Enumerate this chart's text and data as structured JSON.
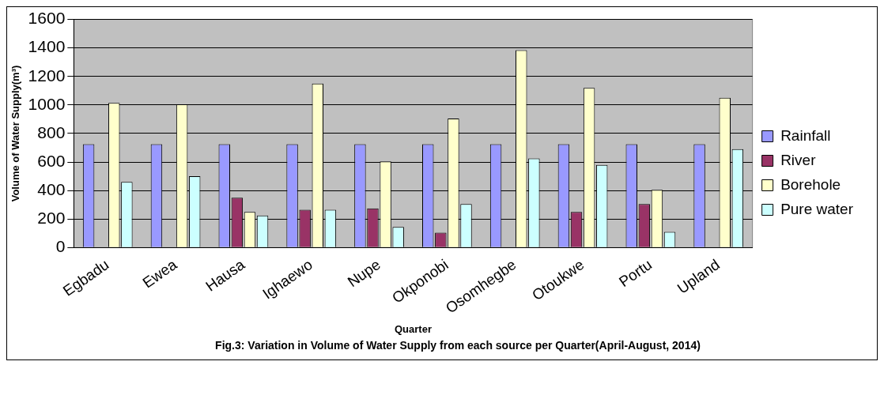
{
  "chart_data": {
    "type": "bar",
    "ylabel": "Volume of Water Supply(m³)",
    "xlabel": "Quarter",
    "annotations": [
      "Fig.3: Variation in Volume of Water Supply from each source per Quarter(April-August, 2014)"
    ],
    "categories": [
      "Egbadu",
      "Ewea",
      "Hausa",
      "Ighaewo",
      "Nupe",
      "Okponobi",
      "Osomhegbe",
      "Otoukwe",
      "Portu",
      "Upland"
    ],
    "series": [
      {
        "name": "Rainfall",
        "color": "#9999ff",
        "values": [
          725,
          725,
          725,
          725,
          725,
          725,
          725,
          725,
          725,
          725
        ]
      },
      {
        "name": "River",
        "color": "#993366",
        "values": [
          0,
          0,
          350,
          265,
          275,
          105,
          0,
          250,
          305,
          0
        ]
      },
      {
        "name": "Borehole",
        "color": "#ffffcc",
        "values": [
          1015,
          1005,
          250,
          1150,
          605,
          905,
          1385,
          1120,
          405,
          1050
        ]
      },
      {
        "name": "Pure water",
        "color": "#ccffff",
        "values": [
          460,
          500,
          225,
          265,
          145,
          305,
          625,
          580,
          110,
          690
        ]
      }
    ],
    "ylim": [
      0,
      1600
    ],
    "yticks": [
      0,
      200,
      400,
      600,
      800,
      1000,
      1200,
      1400,
      1600
    ],
    "grid": "y",
    "legend": "right"
  }
}
